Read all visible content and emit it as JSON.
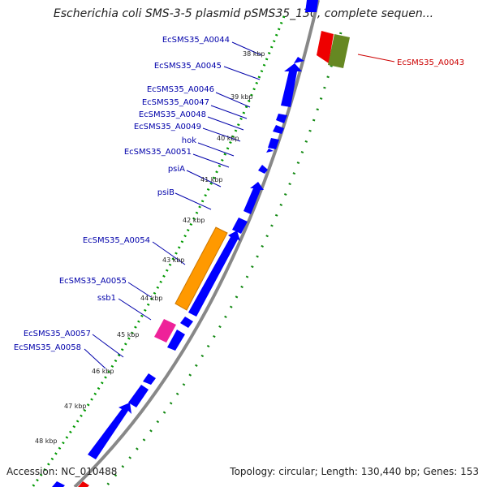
{
  "title": "Escherichia coli SMS-3-5 plasmid pSMS35_130, complete sequen...",
  "footer": {
    "accession": "Accession: NC_010488",
    "summary": "Topology: circular; Length: 130,440 bp; Genes: 153"
  },
  "colors": {
    "cds": "#0000ff",
    "label": "#0000aa",
    "label_right": "#cc0000",
    "backbone": "#888888",
    "dotted_track": "#009900",
    "dashed_track": "#118811",
    "tick_text": "#222222"
  },
  "tick_labels": [
    "38 kbp",
    "39 kbp",
    "40 kbp",
    "41 kbp",
    "42 kbp",
    "43 kbp",
    "44 kbp",
    "45 kbp",
    "46 kbp",
    "47 kbp",
    "48 kbp"
  ],
  "gene_labels": [
    "EcSMS35_A0044",
    "EcSMS35_A0045",
    "EcSMS35_A0046",
    "EcSMS35_A0047",
    "EcSMS35_A0048",
    "EcSMS35_A0049",
    "hok",
    "EcSMS35_A0051",
    "psiA",
    "psiB",
    "EcSMS35_A0054",
    "EcSMS35_A0055",
    "ssb1",
    "EcSMS35_A0057",
    "EcSMS35_A0058"
  ],
  "right_label": "EcSMS35_A0043"
}
